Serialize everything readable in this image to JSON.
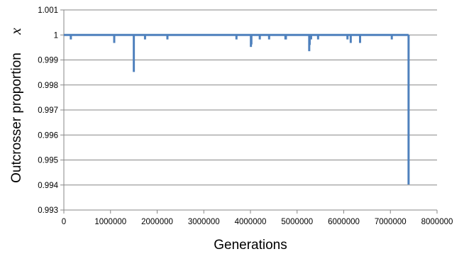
{
  "chart_data": {
    "type": "line",
    "title": "",
    "xlabel": "Generations",
    "ylabel": "Outcrosser proportion",
    "ylabel_variable": "x",
    "xlim": [
      0,
      8000000
    ],
    "ylim": [
      0.993,
      1.001
    ],
    "x_ticks": [
      {
        "value": 0,
        "label": "0"
      },
      {
        "value": 1000000,
        "label": "1000000"
      },
      {
        "value": 2000000,
        "label": "2000000"
      },
      {
        "value": 3000000,
        "label": "3000000"
      },
      {
        "value": 4000000,
        "label": "4000000"
      },
      {
        "value": 5000000,
        "label": "5000000"
      },
      {
        "value": 6000000,
        "label": "6000000"
      },
      {
        "value": 7000000,
        "label": "7000000"
      },
      {
        "value": 8000000,
        "label": "8000000"
      }
    ],
    "y_ticks": [
      {
        "value": 0.993,
        "label": "0.993"
      },
      {
        "value": 0.994,
        "label": "0.994"
      },
      {
        "value": 0.995,
        "label": "0.995"
      },
      {
        "value": 0.996,
        "label": "0.996"
      },
      {
        "value": 0.997,
        "label": "0.997"
      },
      {
        "value": 0.998,
        "label": "0.998"
      },
      {
        "value": 0.999,
        "label": "0.999"
      },
      {
        "value": 1,
        "label": "1"
      },
      {
        "value": 1.001,
        "label": "1.001"
      }
    ],
    "grid": {
      "horizontal": true,
      "vertical": false
    },
    "series": [
      {
        "color": "#4f81bd",
        "baseline": 1.0,
        "end_x": 7390000,
        "dips": [
          {
            "x": 150000,
            "y": 0.99982
          },
          {
            "x": 1080000,
            "y": 0.99968
          },
          {
            "x": 1500000,
            "y": 0.99852
          },
          {
            "x": 1740000,
            "y": 0.99982
          },
          {
            "x": 2220000,
            "y": 0.99982
          },
          {
            "x": 3700000,
            "y": 0.99982
          },
          {
            "x": 4010000,
            "y": 0.99952
          },
          {
            "x": 4020000,
            "y": 0.99962
          },
          {
            "x": 4200000,
            "y": 0.99982
          },
          {
            "x": 4400000,
            "y": 0.99982
          },
          {
            "x": 4750000,
            "y": 0.99982
          },
          {
            "x": 4760000,
            "y": 0.99982
          },
          {
            "x": 5260000,
            "y": 0.99935
          },
          {
            "x": 5270000,
            "y": 0.9996
          },
          {
            "x": 5300000,
            "y": 0.99982
          },
          {
            "x": 5450000,
            "y": 0.99982
          },
          {
            "x": 6080000,
            "y": 0.99982
          },
          {
            "x": 6150000,
            "y": 0.99968
          },
          {
            "x": 6350000,
            "y": 0.99968
          },
          {
            "x": 7030000,
            "y": 0.99982
          }
        ],
        "final_drop": {
          "x": 7390000,
          "y": 0.99402
        }
      }
    ]
  },
  "colors": {
    "series": "#4f81bd",
    "gridline": "#878787",
    "axis": "#878787"
  }
}
